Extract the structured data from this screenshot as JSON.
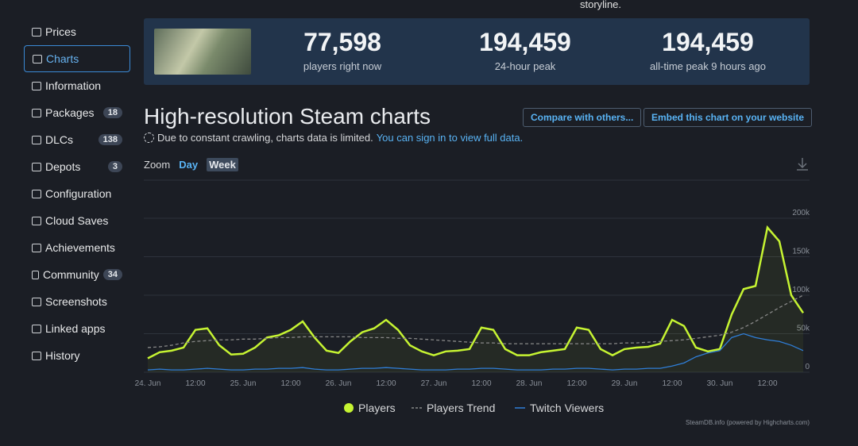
{
  "header": {
    "fragment": "storyline."
  },
  "sidebar": {
    "items": [
      {
        "label": "Prices"
      },
      {
        "label": "Charts"
      },
      {
        "label": "Information"
      },
      {
        "label": "Packages",
        "badge": 18
      },
      {
        "label": "DLCs",
        "badge": 138
      },
      {
        "label": "Depots",
        "badge": 3
      },
      {
        "label": "Configuration"
      },
      {
        "label": "Cloud Saves"
      },
      {
        "label": "Achievements"
      },
      {
        "label": "Community",
        "badge": 34
      },
      {
        "label": "Screenshots"
      },
      {
        "label": "Linked apps"
      },
      {
        "label": "History"
      }
    ]
  },
  "stats": [
    {
      "value": "77,598",
      "label": "players right now"
    },
    {
      "value": "194,459",
      "label": "24-hour peak"
    },
    {
      "value": "194,459",
      "label": "all-time peak 9 hours ago"
    }
  ],
  "heading": "High-resolution Steam charts",
  "buttons": [
    "Compare with others...",
    "Embed this chart on your website"
  ],
  "notice": {
    "text": "Due to constant crawling, charts data is limited.",
    "link": "You can sign in to view full data."
  },
  "zoom": {
    "label": "Zoom",
    "options": [
      "Day",
      "Week"
    ]
  },
  "chart_data": {
    "type": "line",
    "categories": [
      "24. Jun",
      null,
      null,
      null,
      "12:00",
      null,
      null,
      null,
      "25. Jun",
      null,
      null,
      null,
      "12:00",
      null,
      null,
      null,
      "26. Jun",
      null,
      null,
      null,
      "12:00",
      null,
      null,
      null,
      "27. Jun",
      null,
      null,
      null,
      "12:00",
      null,
      null,
      null,
      "28. Jun",
      null,
      null,
      null,
      "12:00",
      null,
      null,
      null,
      "29. Jun",
      null,
      null,
      null,
      "12:00",
      null,
      null,
      null,
      "30. Jun",
      null,
      null,
      null,
      "12:00",
      null,
      null,
      null
    ],
    "series": [
      {
        "name": "Players",
        "color": "#c6f432",
        "values": [
          18000,
          26000,
          28000,
          32000,
          55000,
          57000,
          35000,
          23000,
          24000,
          32000,
          45000,
          48000,
          55000,
          66000,
          45000,
          28000,
          25000,
          40000,
          52000,
          57000,
          68000,
          55000,
          35000,
          27000,
          22000,
          27000,
          28000,
          30000,
          58000,
          55000,
          30000,
          22000,
          22000,
          26000,
          28000,
          30000,
          58000,
          55000,
          30000,
          22000,
          30000,
          32000,
          33000,
          37000,
          68000,
          60000,
          32000,
          27000,
          30000,
          75000,
          108000,
          112000,
          188000,
          170000,
          100000,
          77000
        ]
      },
      {
        "name": "Players Trend",
        "color": "#888888",
        "dashed": true,
        "values": [
          32000,
          33000,
          35000,
          38000,
          40000,
          41000,
          42000,
          42000,
          43000,
          43000,
          44000,
          45000,
          45000,
          46000,
          46000,
          46000,
          46000,
          46000,
          45000,
          45000,
          45000,
          44000,
          44000,
          43000,
          42000,
          41000,
          40000,
          39000,
          38000,
          38000,
          37000,
          37000,
          37000,
          37000,
          37000,
          37000,
          37000,
          37000,
          37000,
          37000,
          38000,
          38000,
          39000,
          40000,
          41000,
          42000,
          44000,
          46000,
          48000,
          52000,
          58000,
          66000,
          75000,
          84000,
          92000,
          100000
        ]
      },
      {
        "name": "Twitch Viewers",
        "color": "#2f7ed8",
        "values": [
          3000,
          4000,
          3000,
          3000,
          4000,
          5000,
          4000,
          3000,
          3000,
          4000,
          4000,
          5000,
          5000,
          6000,
          4000,
          3000,
          3000,
          4000,
          5000,
          5000,
          6000,
          5000,
          4000,
          3000,
          3000,
          3000,
          4000,
          4000,
          5000,
          5000,
          4000,
          3000,
          3000,
          3000,
          4000,
          4000,
          5000,
          5000,
          4000,
          3000,
          4000,
          4000,
          5000,
          5000,
          8000,
          12000,
          20000,
          25000,
          28000,
          45000,
          50000,
          45000,
          42000,
          40000,
          35000,
          28000
        ]
      }
    ],
    "ylim": [
      0,
      200000
    ],
    "yticks": [
      0,
      {
        "value": 50000,
        "label": "50k"
      },
      {
        "value": 100000,
        "label": "100k"
      },
      {
        "value": 150000,
        "label": "150k"
      },
      {
        "value": 200000,
        "label": "200k"
      }
    ],
    "grid": true,
    "credit": "SteamDB.info (powered by Highcharts.com)"
  }
}
